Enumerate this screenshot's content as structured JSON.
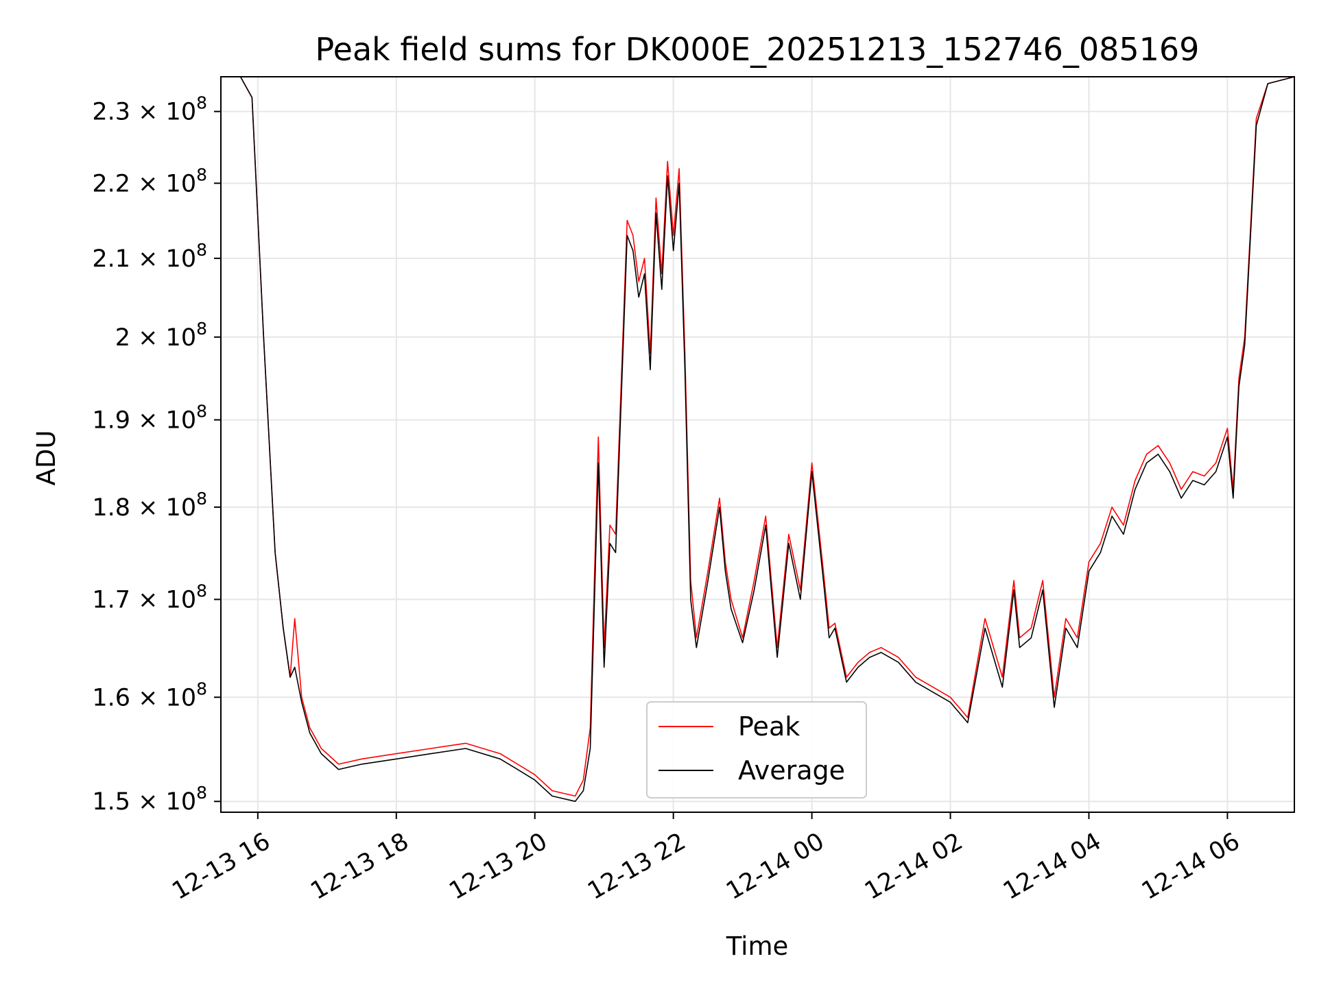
{
  "chart_data": {
    "type": "line",
    "title": "Peak field sums for DK000E_20251213_152746_085169",
    "xlabel": "Time",
    "ylabel": "ADU",
    "yscale": "log",
    "grid": true,
    "legend_position": "lower-center",
    "xlim": [
      "2025-12-13 15:28",
      "2025-12-14 06:58"
    ],
    "ylim": [
      149000000,
      235000000
    ],
    "x_ticks": [
      {
        "value": "2025-12-13 16:00",
        "label": "12-13 16"
      },
      {
        "value": "2025-12-13 18:00",
        "label": "12-13 18"
      },
      {
        "value": "2025-12-13 20:00",
        "label": "12-13 20"
      },
      {
        "value": "2025-12-13 22:00",
        "label": "12-13 22"
      },
      {
        "value": "2025-12-14 00:00",
        "label": "12-14 00"
      },
      {
        "value": "2025-12-14 02:00",
        "label": "12-14 02"
      },
      {
        "value": "2025-12-14 04:00",
        "label": "12-14 04"
      },
      {
        "value": "2025-12-14 06:00",
        "label": "12-14 06"
      }
    ],
    "y_ticks": [
      {
        "value": 150000000,
        "mantissa": "1.5"
      },
      {
        "value": 160000000,
        "mantissa": "1.6"
      },
      {
        "value": 170000000,
        "mantissa": "1.7"
      },
      {
        "value": 180000000,
        "mantissa": "1.8"
      },
      {
        "value": 190000000,
        "mantissa": "1.9"
      },
      {
        "value": 200000000,
        "mantissa": "2"
      },
      {
        "value": 210000000,
        "mantissa": "2.1"
      },
      {
        "value": 220000000,
        "mantissa": "2.2"
      },
      {
        "value": 230000000,
        "mantissa": "2.3"
      }
    ],
    "tick_exponent_base": "10",
    "tick_exponent": "8",
    "series": [
      {
        "name": "Peak",
        "color": "#ff0000",
        "x": [
          "2025-12-13 15:28",
          "2025-12-13 15:45",
          "2025-12-13 15:55",
          "2025-12-13 16:05",
          "2025-12-13 16:15",
          "2025-12-13 16:22",
          "2025-12-13 16:28",
          "2025-12-13 16:32",
          "2025-12-13 16:38",
          "2025-12-13 16:45",
          "2025-12-13 16:55",
          "2025-12-13 17:10",
          "2025-12-13 17:30",
          "2025-12-13 18:00",
          "2025-12-13 18:30",
          "2025-12-13 19:00",
          "2025-12-13 19:30",
          "2025-12-13 19:45",
          "2025-12-13 20:00",
          "2025-12-13 20:15",
          "2025-12-13 20:35",
          "2025-12-13 20:42",
          "2025-12-13 20:48",
          "2025-12-13 20:55",
          "2025-12-13 21:00",
          "2025-12-13 21:05",
          "2025-12-13 21:10",
          "2025-12-13 21:15",
          "2025-12-13 21:20",
          "2025-12-13 21:25",
          "2025-12-13 21:30",
          "2025-12-13 21:35",
          "2025-12-13 21:40",
          "2025-12-13 21:45",
          "2025-12-13 21:50",
          "2025-12-13 21:55",
          "2025-12-13 22:00",
          "2025-12-13 22:05",
          "2025-12-13 22:10",
          "2025-12-13 22:15",
          "2025-12-13 22:20",
          "2025-12-13 22:30",
          "2025-12-13 22:40",
          "2025-12-13 22:45",
          "2025-12-13 22:50",
          "2025-12-13 23:00",
          "2025-12-13 23:10",
          "2025-12-13 23:20",
          "2025-12-13 23:30",
          "2025-12-13 23:40",
          "2025-12-13 23:50",
          "2025-12-14 00:00",
          "2025-12-14 00:10",
          "2025-12-14 00:15",
          "2025-12-14 00:20",
          "2025-12-14 00:30",
          "2025-12-14 00:40",
          "2025-12-14 00:50",
          "2025-12-14 01:00",
          "2025-12-14 01:15",
          "2025-12-14 01:30",
          "2025-12-14 01:45",
          "2025-12-14 02:00",
          "2025-12-14 02:15",
          "2025-12-14 02:30",
          "2025-12-14 02:45",
          "2025-12-14 02:55",
          "2025-12-14 03:00",
          "2025-12-14 03:10",
          "2025-12-14 03:20",
          "2025-12-14 03:30",
          "2025-12-14 03:40",
          "2025-12-14 03:50",
          "2025-12-14 04:00",
          "2025-12-14 04:10",
          "2025-12-14 04:20",
          "2025-12-14 04:30",
          "2025-12-14 04:40",
          "2025-12-14 04:50",
          "2025-12-14 05:00",
          "2025-12-14 05:10",
          "2025-12-14 05:20",
          "2025-12-14 05:30",
          "2025-12-14 05:40",
          "2025-12-14 05:50",
          "2025-12-14 06:00",
          "2025-12-14 06:05",
          "2025-12-14 06:10",
          "2025-12-14 06:15",
          "2025-12-14 06:20",
          "2025-12-14 06:25",
          "2025-12-14 06:35",
          "2025-12-14 06:58"
        ],
        "values": [
          235000000,
          235000000,
          232000000,
          200000000,
          175000000,
          167000000,
          162000000,
          168000000,
          160000000,
          157000000,
          155000000,
          153500000,
          154000000,
          154500000,
          155000000,
          155500000,
          154500000,
          153500000,
          152500000,
          151000000,
          150500000,
          152000000,
          157000000,
          188000000,
          165000000,
          178000000,
          177000000,
          195000000,
          215000000,
          213000000,
          207000000,
          210000000,
          198000000,
          218000000,
          208000000,
          223000000,
          213000000,
          222000000,
          198000000,
          172000000,
          166000000,
          173000000,
          181000000,
          174000000,
          170000000,
          166000000,
          172000000,
          179000000,
          165000000,
          177000000,
          171000000,
          185000000,
          173000000,
          167000000,
          167500000,
          162000000,
          163500000,
          164500000,
          165000000,
          164000000,
          162000000,
          161000000,
          160000000,
          158000000,
          168000000,
          162000000,
          172000000,
          166000000,
          167000000,
          172000000,
          160000000,
          168000000,
          166000000,
          174000000,
          176000000,
          180000000,
          178000000,
          183000000,
          186000000,
          187000000,
          185000000,
          182000000,
          184000000,
          183500000,
          185000000,
          189000000,
          182000000,
          195000000,
          200000000,
          214000000,
          229000000,
          234000000,
          235000000
        ]
      },
      {
        "name": "Average",
        "color": "#000000",
        "x": [
          "2025-12-13 15:28",
          "2025-12-13 15:45",
          "2025-12-13 15:55",
          "2025-12-13 16:05",
          "2025-12-13 16:15",
          "2025-12-13 16:22",
          "2025-12-13 16:28",
          "2025-12-13 16:32",
          "2025-12-13 16:38",
          "2025-12-13 16:45",
          "2025-12-13 16:55",
          "2025-12-13 17:10",
          "2025-12-13 17:30",
          "2025-12-13 18:00",
          "2025-12-13 18:30",
          "2025-12-13 19:00",
          "2025-12-13 19:30",
          "2025-12-13 19:45",
          "2025-12-13 20:00",
          "2025-12-13 20:15",
          "2025-12-13 20:35",
          "2025-12-13 20:42",
          "2025-12-13 20:48",
          "2025-12-13 20:55",
          "2025-12-13 21:00",
          "2025-12-13 21:05",
          "2025-12-13 21:10",
          "2025-12-13 21:15",
          "2025-12-13 21:20",
          "2025-12-13 21:25",
          "2025-12-13 21:30",
          "2025-12-13 21:35",
          "2025-12-13 21:40",
          "2025-12-13 21:45",
          "2025-12-13 21:50",
          "2025-12-13 21:55",
          "2025-12-13 22:00",
          "2025-12-13 22:05",
          "2025-12-13 22:10",
          "2025-12-13 22:15",
          "2025-12-13 22:20",
          "2025-12-13 22:30",
          "2025-12-13 22:40",
          "2025-12-13 22:45",
          "2025-12-13 22:50",
          "2025-12-13 23:00",
          "2025-12-13 23:10",
          "2025-12-13 23:20",
          "2025-12-13 23:30",
          "2025-12-13 23:40",
          "2025-12-13 23:50",
          "2025-12-14 00:00",
          "2025-12-14 00:10",
          "2025-12-14 00:15",
          "2025-12-14 00:20",
          "2025-12-14 00:30",
          "2025-12-14 00:40",
          "2025-12-14 00:50",
          "2025-12-14 01:00",
          "2025-12-14 01:15",
          "2025-12-14 01:30",
          "2025-12-14 01:45",
          "2025-12-14 02:00",
          "2025-12-14 02:15",
          "2025-12-14 02:30",
          "2025-12-14 02:45",
          "2025-12-14 02:55",
          "2025-12-14 03:00",
          "2025-12-14 03:10",
          "2025-12-14 03:20",
          "2025-12-14 03:30",
          "2025-12-14 03:40",
          "2025-12-14 03:50",
          "2025-12-14 04:00",
          "2025-12-14 04:10",
          "2025-12-14 04:20",
          "2025-12-14 04:30",
          "2025-12-14 04:40",
          "2025-12-14 04:50",
          "2025-12-14 05:00",
          "2025-12-14 05:10",
          "2025-12-14 05:20",
          "2025-12-14 05:30",
          "2025-12-14 05:40",
          "2025-12-14 05:50",
          "2025-12-14 06:00",
          "2025-12-14 06:05",
          "2025-12-14 06:10",
          "2025-12-14 06:15",
          "2025-12-14 06:20",
          "2025-12-14 06:25",
          "2025-12-14 06:35",
          "2025-12-14 06:58"
        ],
        "values": [
          235000000,
          235000000,
          232000000,
          200000000,
          175000000,
          167000000,
          162000000,
          163000000,
          159500000,
          156500000,
          154500000,
          153000000,
          153500000,
          154000000,
          154500000,
          155000000,
          154000000,
          153000000,
          152000000,
          150500000,
          150000000,
          151000000,
          155000000,
          185000000,
          163000000,
          176000000,
          175000000,
          193000000,
          213000000,
          211000000,
          205000000,
          208000000,
          196000000,
          216000000,
          206000000,
          221000000,
          211000000,
          220000000,
          196000000,
          170000000,
          165000000,
          172000000,
          180000000,
          173000000,
          169000000,
          165500000,
          171000000,
          178000000,
          164000000,
          176000000,
          170000000,
          184000000,
          172000000,
          166000000,
          167000000,
          161500000,
          163000000,
          164000000,
          164500000,
          163500000,
          161500000,
          160500000,
          159500000,
          157500000,
          167000000,
          161000000,
          171000000,
          165000000,
          166000000,
          171000000,
          159000000,
          167000000,
          165000000,
          173000000,
          175000000,
          179000000,
          177000000,
          182000000,
          185000000,
          186000000,
          184000000,
          181000000,
          183000000,
          182500000,
          184000000,
          188000000,
          181000000,
          194000000,
          199000000,
          213000000,
          228000000,
          234000000,
          235000000
        ]
      }
    ]
  }
}
